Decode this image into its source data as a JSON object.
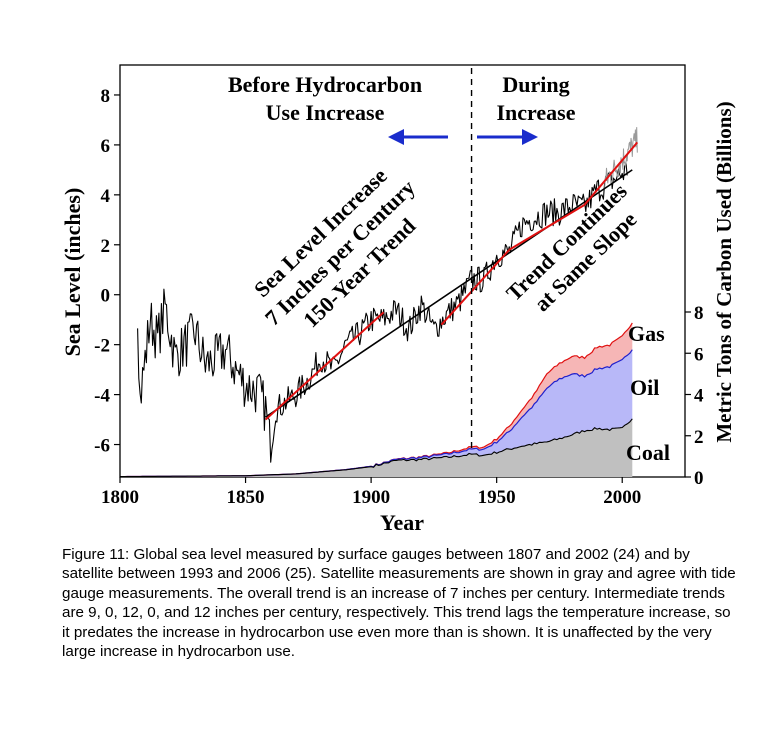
{
  "chart_data": {
    "type": "line",
    "xlabel": "Year",
    "ylabel_left": "Sea Level (inches)",
    "ylabel_right": "Metric Tons of Carbon Used (Billions)",
    "xlim": [
      1800,
      2025
    ],
    "ylim_left": [
      -7.3,
      9.2
    ],
    "ylim_right": [
      0,
      8
    ],
    "x_ticks": [
      "1800",
      "1850",
      "1900",
      "1950",
      "2000"
    ],
    "y_ticks_left": [
      "-6",
      "-4",
      "-2",
      "0",
      "2",
      "4",
      "6",
      "8"
    ],
    "y_ticks_right": [
      "0",
      "2",
      "4",
      "6",
      "8"
    ],
    "divider_year": 1940,
    "annotations": {
      "before_line1": "Before Hydrocarbon",
      "before_line2": "Use Increase",
      "during_line1": "During",
      "during_line2": "Increase",
      "trend_line1": "Sea Level Increase",
      "trend_line2": "7 Inches per Century",
      "trend_line3": "150-Year Trend",
      "continues_line1": "Trend Continues",
      "continues_line2": "at Same Slope"
    },
    "series_labels": {
      "gas": "Gas",
      "oil": "Oil",
      "coal": "Coal"
    },
    "colors": {
      "sea_level": "#000000",
      "satellite": "#9a9a9a",
      "trend_red": "#e01010",
      "coal_fill": "#c0c0c0",
      "oil_fill": "#b8b8f8",
      "gas_fill": "#f6b6b6",
      "oil_line": "#2020cc",
      "gas_line": "#e01010",
      "arrow": "#1a2ccc"
    },
    "overall_trend": {
      "x": [
        1858,
        2004
      ],
      "y": [
        -4.9,
        5.0
      ]
    },
    "segment_trends": [
      {
        "x": [
          1858,
          1905
        ],
        "y": [
          -5.0,
          -0.7
        ]
      },
      {
        "x": [
          1928,
          1955
        ],
        "y": [
          -1.2,
          1.8
        ]
      },
      {
        "x": [
          1955,
          1985
        ],
        "y": [
          1.8,
          3.6
        ]
      },
      {
        "x": [
          1985,
          2006
        ],
        "y": [
          3.6,
          6.1
        ]
      }
    ],
    "sea_level_anchors": {
      "x": [
        1807,
        1808,
        1812,
        1815,
        1818,
        1822,
        1826,
        1830,
        1834,
        1838,
        1842,
        1846,
        1850,
        1855,
        1858,
        1860,
        1862,
        1866,
        1870,
        1875,
        1880,
        1885,
        1890,
        1895,
        1900,
        1905,
        1910,
        1915,
        1920,
        1925,
        1930,
        1935,
        1940,
        1945,
        1950,
        1955,
        1960,
        1965,
        1970,
        1975,
        1980,
        1985,
        1990,
        1995,
        2002
      ],
      "y": [
        -0.5,
        -4.2,
        -1.0,
        -1.8,
        -0.5,
        -2.5,
        -2.0,
        -1.5,
        -2.8,
        -2.6,
        -2.2,
        -3.0,
        -3.6,
        -3.9,
        -4.6,
        -6.2,
        -4.6,
        -4.3,
        -4.0,
        -3.4,
        -2.5,
        -3.0,
        -2.0,
        -1.6,
        -1.0,
        -1.0,
        -0.6,
        -1.4,
        -0.4,
        -1.4,
        -0.8,
        -0.3,
        0.6,
        0.6,
        1.6,
        1.7,
        2.8,
        3.1,
        3.3,
        3.3,
        3.6,
        3.5,
        4.2,
        4.5,
        5.0
      ]
    },
    "satellite_range": {
      "x": [
        1993,
        2006
      ],
      "y": [
        4.5,
        6.2
      ]
    },
    "carbon": {
      "x": [
        1800,
        1850,
        1870,
        1890,
        1900,
        1910,
        1920,
        1930,
        1940,
        1945,
        1950,
        1955,
        1960,
        1965,
        1970,
        1975,
        1980,
        1985,
        1990,
        1995,
        2000,
        2004
      ],
      "coal": [
        0.02,
        0.06,
        0.15,
        0.35,
        0.5,
        0.8,
        0.85,
        0.95,
        1.1,
        1.05,
        1.2,
        1.35,
        1.5,
        1.6,
        1.7,
        1.85,
        2.05,
        2.25,
        2.35,
        2.3,
        2.35,
        2.85
      ],
      "oil_total": [
        0.02,
        0.06,
        0.15,
        0.36,
        0.52,
        0.85,
        0.95,
        1.1,
        1.35,
        1.35,
        1.7,
        2.2,
        2.9,
        3.5,
        4.3,
        4.75,
        5.0,
        4.9,
        5.25,
        5.35,
        5.65,
        6.2
      ],
      "gas_total": [
        0.02,
        0.06,
        0.15,
        0.36,
        0.52,
        0.86,
        0.97,
        1.15,
        1.45,
        1.45,
        1.85,
        2.45,
        3.25,
        4.0,
        5.0,
        5.5,
        5.85,
        5.8,
        6.3,
        6.4,
        6.8,
        7.5
      ]
    }
  },
  "caption": "Figure 11: Global sea level measured by surface gauges between 1807 and 2002 (24) and by satellite between 1993 and 2006 (25). Satellite measurements are shown in gray and agree with tide gauge measurements. The overall trend is an increase of 7 inches per century. Intermediate trends are 9, 0, 12, 0, and 12 inches per century, respectively. This trend lags the temperature increase, so it predates the increase in hydrocarbon use even more than is shown. It is unaffected by the very large increase in hydrocarbon use."
}
